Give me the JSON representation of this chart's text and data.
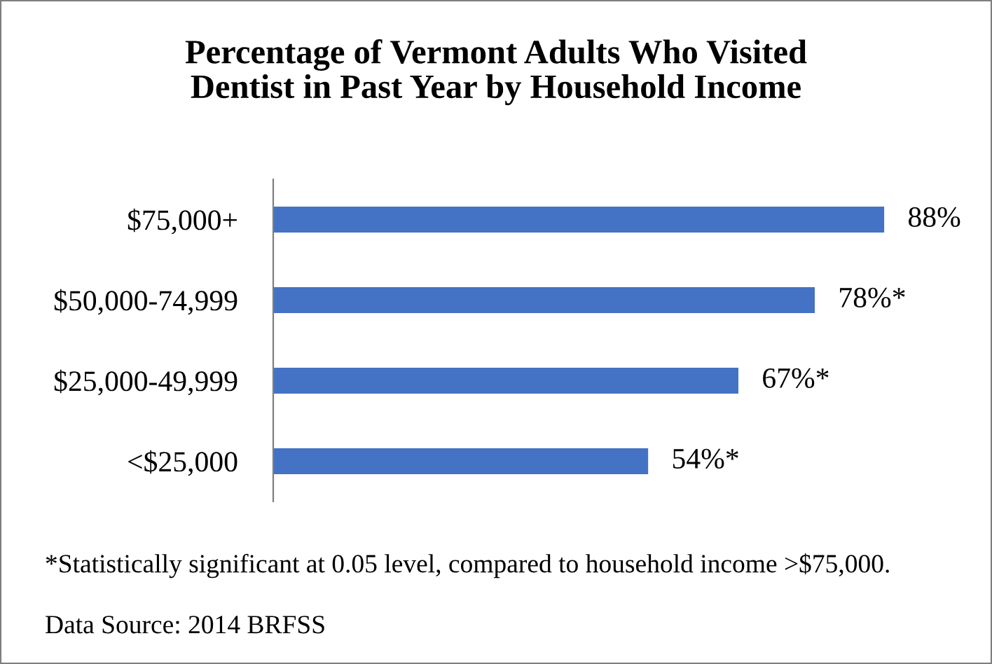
{
  "chart_data": {
    "type": "bar",
    "orientation": "horizontal",
    "title": "Percentage of Vermont Adults Who Visited\nDentist in Past Year by Household Income",
    "categories": [
      "$75,000+",
      "$50,000-74,999",
      "$25,000-49,999",
      "<$25,000"
    ],
    "values": [
      88,
      78,
      67,
      54
    ],
    "value_labels": [
      "88%",
      "78%*",
      "67%*",
      "54%*"
    ],
    "color": "#4472c4",
    "tick_labels": "y",
    "grid": false,
    "legend": false,
    "annotations": [
      "*Statistically significant at 0.05 level, compared to household income >$75,000.",
      "Data Source: 2014 BRFSS"
    ]
  }
}
